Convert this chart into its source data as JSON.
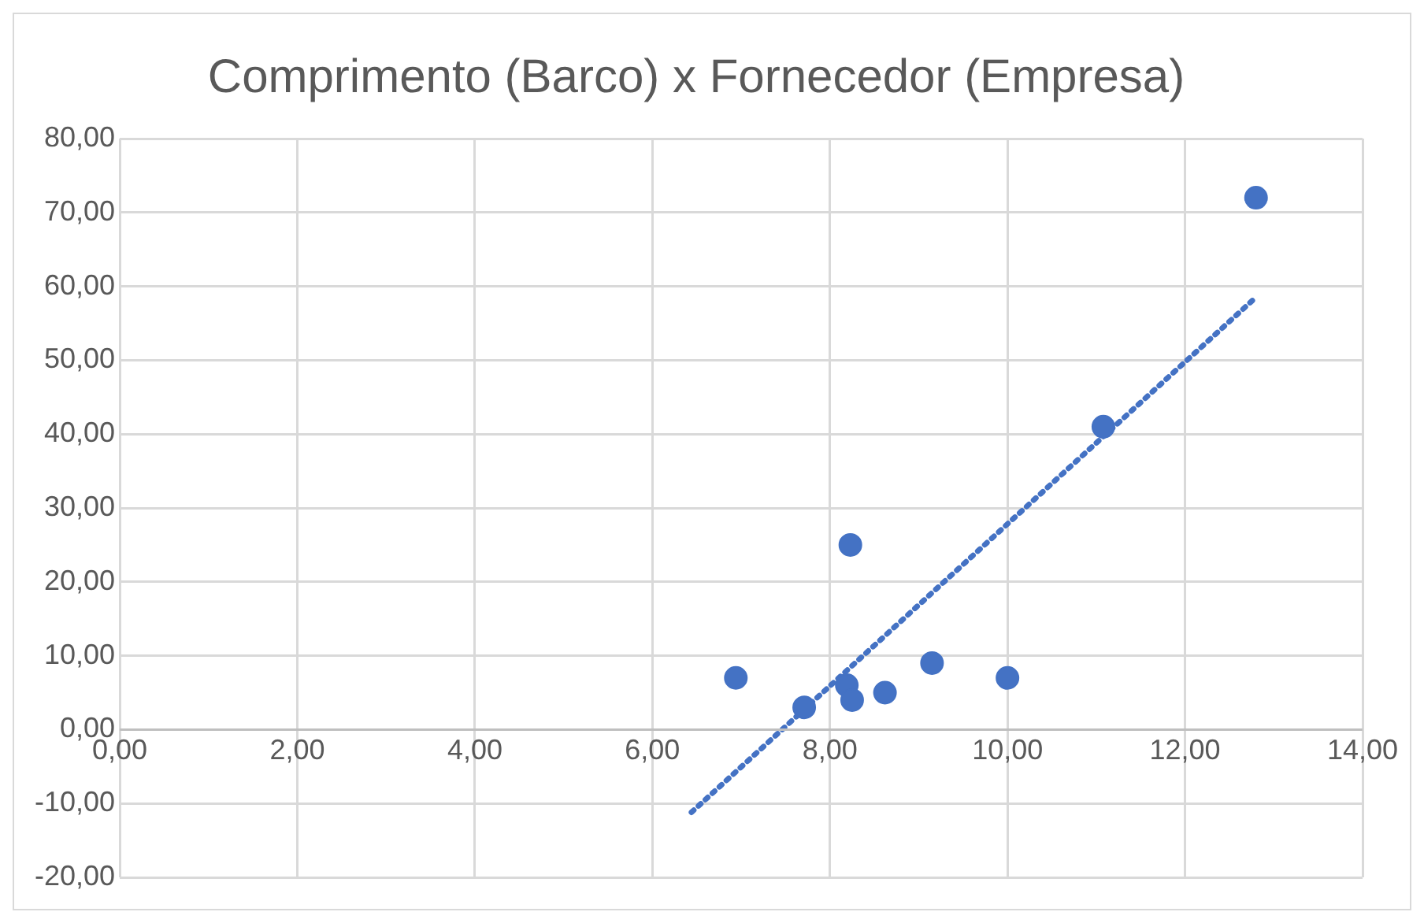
{
  "chart_data": {
    "type": "scatter",
    "title": "Comprimento (Barco) x Fornecedor (Empresa)",
    "xlim": [
      0,
      14
    ],
    "ylim": [
      -20,
      80
    ],
    "xticks": [
      {
        "value": 0,
        "label": "0,00"
      },
      {
        "value": 2,
        "label": "2,00"
      },
      {
        "value": 4,
        "label": "4,00"
      },
      {
        "value": 6,
        "label": "6,00"
      },
      {
        "value": 8,
        "label": "8,00"
      },
      {
        "value": 10,
        "label": "10,00"
      },
      {
        "value": 12,
        "label": "12,00"
      },
      {
        "value": 14,
        "label": "14,00"
      }
    ],
    "yticks": [
      {
        "value": -20,
        "label": "-20,00"
      },
      {
        "value": -10,
        "label": "-10,00"
      },
      {
        "value": 0,
        "label": "0,00"
      },
      {
        "value": 10,
        "label": "10,00"
      },
      {
        "value": 20,
        "label": "20,00"
      },
      {
        "value": 30,
        "label": "30,00"
      },
      {
        "value": 40,
        "label": "40,00"
      },
      {
        "value": 50,
        "label": "50,00"
      },
      {
        "value": 60,
        "label": "60,00"
      },
      {
        "value": 70,
        "label": "70,00"
      },
      {
        "value": 80,
        "label": "80,00"
      }
    ],
    "grid": true,
    "legend": false,
    "marker": "circle",
    "series": [
      {
        "color": "#4472c4",
        "x": [
          6.94,
          7.71,
          8.19,
          8.23,
          8.25,
          8.62,
          9.15,
          10.0,
          11.08,
          12.8
        ],
        "values": [
          7,
          3,
          6,
          25,
          4,
          5,
          9,
          7,
          41,
          72
        ]
      },
      {
        "type": "line",
        "color": "#4472c4",
        "line_style": "dotted",
        "marker": "none",
        "x": [
          6.44,
          12.77
        ],
        "values": [
          -11.2,
          58.2
        ]
      }
    ]
  }
}
